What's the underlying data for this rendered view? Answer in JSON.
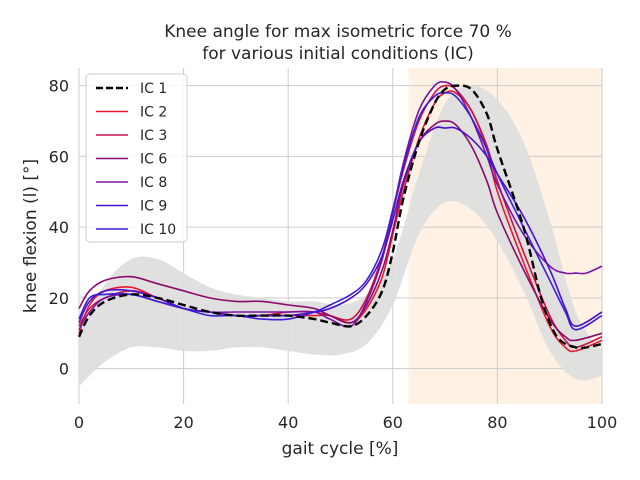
{
  "chart_data": {
    "type": "line",
    "title": "Knee angle for max isometric force 70 %",
    "subtitle": "for various initial conditions (IC)",
    "xlabel": "gait cycle [%]",
    "ylabel": "knee flexion (l) [°]",
    "xlim": [
      0,
      100
    ],
    "ylim": [
      -10,
      85
    ],
    "x_ticks": [
      "0",
      "20",
      "40",
      "60",
      "80",
      "100"
    ],
    "y_ticks": [
      "0",
      "20",
      "40",
      "60",
      "80"
    ],
    "grid": true,
    "legend_position": "upper-left",
    "swing_region": {
      "x_start": 63,
      "x_end": 100,
      "color": "#fff1e3"
    },
    "reference_band": {
      "color": "#dedede",
      "x": [
        0,
        5,
        10,
        15,
        20,
        25,
        30,
        35,
        40,
        45,
        50,
        55,
        60,
        65,
        70,
        75,
        80,
        85,
        90,
        95,
        100
      ],
      "upper": [
        10,
        24,
        31,
        31,
        27,
        23,
        21,
        20,
        19,
        19,
        18,
        21,
        31,
        55,
        75,
        80,
        76,
        64,
        42,
        16,
        5
      ],
      "lower": [
        -5,
        2,
        6,
        6,
        5,
        5,
        6,
        6,
        5,
        4,
        4,
        7,
        18,
        38,
        47,
        45,
        36,
        22,
        5,
        -3,
        -2
      ]
    },
    "series": [
      {
        "name": "IC 1",
        "color": "#000000",
        "dashed": true,
        "x": [
          0,
          2,
          5,
          10,
          15,
          20,
          25,
          30,
          35,
          40,
          45,
          48,
          52,
          55,
          58,
          60,
          62,
          65,
          68,
          70,
          72,
          75,
          78,
          80,
          85,
          88,
          90,
          92,
          95,
          97,
          100
        ],
        "y": [
          9,
          15,
          19,
          21,
          20,
          18,
          16,
          15,
          15,
          15,
          14,
          13,
          12,
          15,
          22,
          33,
          48,
          64,
          75,
          79,
          80,
          79,
          72,
          62,
          40,
          22,
          13,
          8,
          6,
          6,
          7
        ]
      },
      {
        "name": "IC 2",
        "color": "#e8192c",
        "x": [
          0,
          2,
          5,
          10,
          15,
          20,
          25,
          30,
          35,
          40,
          45,
          48,
          52,
          55,
          58,
          60,
          62,
          65,
          68,
          70,
          72,
          75,
          78,
          80,
          85,
          90,
          93,
          95,
          100
        ],
        "y": [
          10,
          18,
          22,
          23,
          20,
          17,
          16,
          15,
          15,
          15,
          15,
          15,
          13,
          17,
          26,
          38,
          50,
          65,
          75,
          78,
          78,
          73,
          62,
          50,
          30,
          12,
          6,
          5,
          8
        ]
      },
      {
        "name": "IC 3",
        "color": "#cc1346",
        "x": [
          0,
          2,
          5,
          10,
          15,
          20,
          25,
          30,
          35,
          40,
          45,
          48,
          52,
          55,
          58,
          60,
          62,
          65,
          68,
          70,
          72,
          75,
          78,
          80,
          85,
          90,
          93,
          95,
          100
        ],
        "y": [
          12,
          17,
          20,
          22,
          20,
          17,
          16,
          15,
          15,
          16,
          16,
          15,
          14,
          20,
          32,
          44,
          56,
          70,
          78,
          80,
          79,
          73,
          63,
          53,
          33,
          15,
          8,
          6,
          9
        ]
      },
      {
        "name": "IC 6",
        "color": "#8b0a6b",
        "x": [
          0,
          2,
          5,
          10,
          15,
          20,
          25,
          30,
          35,
          40,
          45,
          48,
          52,
          55,
          58,
          60,
          62,
          65,
          68,
          70,
          72,
          75,
          78,
          80,
          85,
          90,
          93,
          95,
          100
        ],
        "y": [
          17,
          22,
          25,
          26,
          24,
          22,
          20,
          19,
          19,
          18,
          17,
          15,
          13,
          18,
          28,
          39,
          52,
          64,
          69,
          70,
          69,
          63,
          53,
          44,
          28,
          14,
          9,
          8,
          10
        ]
      },
      {
        "name": "IC 8",
        "color": "#7a12a4",
        "x": [
          0,
          2,
          5,
          10,
          15,
          20,
          25,
          30,
          35,
          40,
          45,
          48,
          52,
          55,
          58,
          60,
          62,
          65,
          68,
          70,
          72,
          75,
          78,
          80,
          85,
          90,
          93,
          95,
          97,
          100
        ],
        "y": [
          11,
          16,
          20,
          21,
          19,
          17,
          16,
          16,
          16,
          16,
          16,
          14,
          12,
          19,
          31,
          44,
          58,
          73,
          80,
          81,
          79,
          71,
          60,
          52,
          38,
          29,
          27,
          27,
          27,
          29
        ]
      },
      {
        "name": "IC 9",
        "color": "#4b10c8",
        "x": [
          0,
          2,
          5,
          10,
          15,
          20,
          25,
          30,
          35,
          40,
          45,
          48,
          52,
          55,
          58,
          60,
          62,
          65,
          68,
          70,
          72,
          75,
          78,
          80,
          85,
          90,
          93,
          95,
          100
        ],
        "y": [
          13,
          19,
          22,
          22,
          20,
          17,
          16,
          15,
          15,
          15,
          16,
          17,
          20,
          24,
          32,
          42,
          53,
          64,
          68,
          68,
          68,
          65,
          60,
          55,
          43,
          28,
          17,
          12,
          16
        ]
      },
      {
        "name": "IC 10",
        "color": "#3a1fd6",
        "x": [
          0,
          2,
          5,
          10,
          15,
          20,
          25,
          30,
          35,
          40,
          45,
          48,
          52,
          55,
          58,
          60,
          62,
          65,
          68,
          70,
          72,
          75,
          78,
          80,
          85,
          90,
          93,
          95,
          100
        ],
        "y": [
          14,
          20,
          21,
          21,
          19,
          17,
          15,
          15,
          14,
          14,
          16,
          18,
          21,
          25,
          34,
          45,
          57,
          71,
          77,
          78,
          77,
          71,
          62,
          55,
          40,
          25,
          16,
          11,
          15
        ]
      }
    ]
  }
}
